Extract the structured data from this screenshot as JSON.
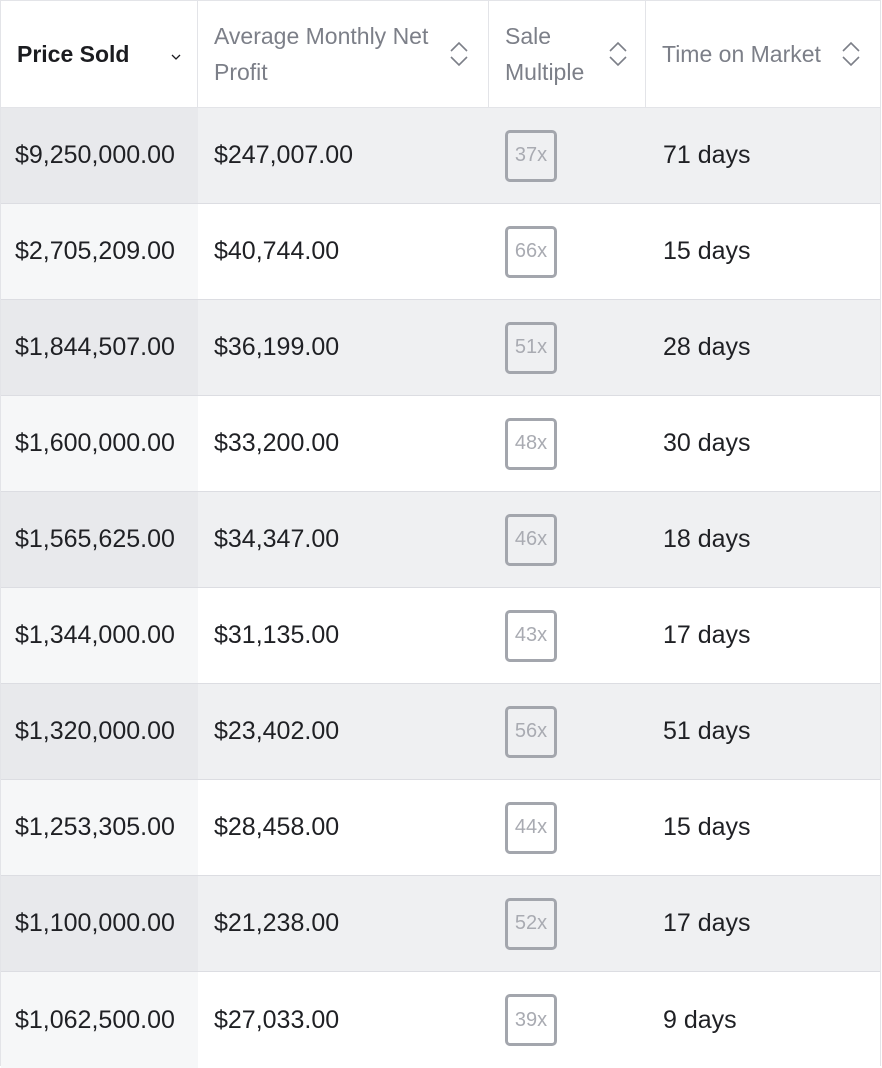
{
  "table": {
    "columns": [
      {
        "key": "price_sold",
        "label": "Price Sold",
        "sorted": true,
        "sort_direction": "descending",
        "icon": "chevron-down-icon"
      },
      {
        "key": "avg_monthly_net_profit",
        "label": "Average Monthly Net Profit",
        "sorted": false,
        "icon": "sort-icon"
      },
      {
        "key": "sale_multiple",
        "label": "Sale Multiple",
        "sorted": false,
        "icon": "sort-icon"
      },
      {
        "key": "time_on_market",
        "label": "Time on Market",
        "sorted": false,
        "icon": "sort-icon"
      }
    ],
    "rows": [
      {
        "price_sold": "$9,250,000.00",
        "avg_monthly_net_profit": "$247,007.00",
        "sale_multiple": "37x",
        "time_on_market": "71 days"
      },
      {
        "price_sold": "$2,705,209.00",
        "avg_monthly_net_profit": "$40,744.00",
        "sale_multiple": "66x",
        "time_on_market": "15 days"
      },
      {
        "price_sold": "$1,844,507.00",
        "avg_monthly_net_profit": "$36,199.00",
        "sale_multiple": "51x",
        "time_on_market": "28 days"
      },
      {
        "price_sold": "$1,600,000.00",
        "avg_monthly_net_profit": "$33,200.00",
        "sale_multiple": "48x",
        "time_on_market": "30 days"
      },
      {
        "price_sold": "$1,565,625.00",
        "avg_monthly_net_profit": "$34,347.00",
        "sale_multiple": "46x",
        "time_on_market": "18 days"
      },
      {
        "price_sold": "$1,344,000.00",
        "avg_monthly_net_profit": "$31,135.00",
        "sale_multiple": "43x",
        "time_on_market": "17 days"
      },
      {
        "price_sold": "$1,320,000.00",
        "avg_monthly_net_profit": "$23,402.00",
        "sale_multiple": "56x",
        "time_on_market": "51 days"
      },
      {
        "price_sold": "$1,253,305.00",
        "avg_monthly_net_profit": "$28,458.00",
        "sale_multiple": "44x",
        "time_on_market": "15 days"
      },
      {
        "price_sold": "$1,100,000.00",
        "avg_monthly_net_profit": "$21,238.00",
        "sale_multiple": "52x",
        "time_on_market": "17 days"
      },
      {
        "price_sold": "$1,062,500.00",
        "avg_monthly_net_profit": "$27,033.00",
        "sale_multiple": "39x",
        "time_on_market": "9 days"
      }
    ]
  },
  "colors": {
    "header_sorted_text": "#1b1c20",
    "header_text": "#7c7f88",
    "row_alt_bg": "#eff0f2",
    "badge_border": "#a3a6ad",
    "badge_text": "#a9abb2"
  }
}
